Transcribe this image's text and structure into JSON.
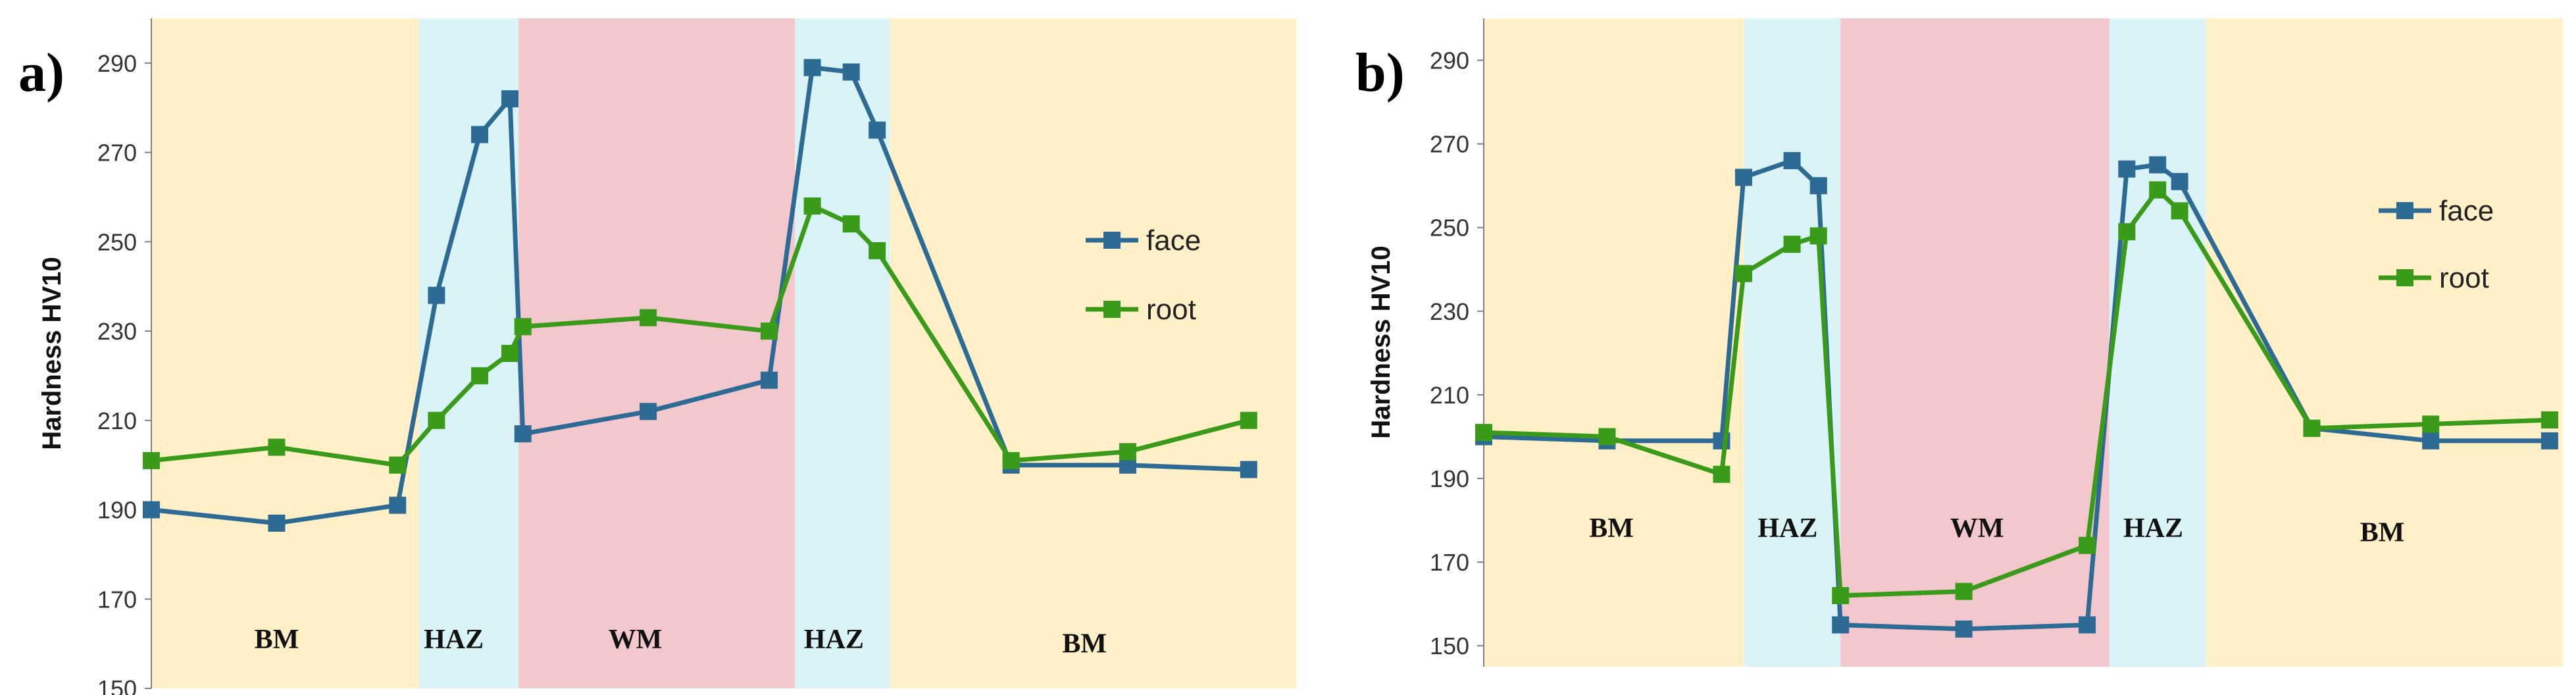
{
  "colors": {
    "bm": "#FFF0C8",
    "haz": "#DAF3F6",
    "wm": "#F2C8CC",
    "face": "#2D6A94",
    "root": "#3A9A1A",
    "axis": "#7F7F7F"
  },
  "chart_data": [
    {
      "type": "line",
      "panel_label": "a)",
      "ylabel": "Hardness HV10",
      "ylim": [
        150,
        300
      ],
      "yticks": [
        150,
        170,
        190,
        210,
        230,
        250,
        270,
        290
      ],
      "xlim": [
        0,
        26.5
      ],
      "zones": [
        {
          "label": "BM",
          "start": 0,
          "end": 6.2,
          "kind": "bm",
          "label_x": 2.9,
          "label_y": 159
        },
        {
          "label": "HAZ",
          "start": 6.2,
          "end": 8.5,
          "kind": "haz",
          "label_x": 7.0,
          "label_y": 159
        },
        {
          "label": "WM",
          "start": 8.5,
          "end": 14.9,
          "kind": "wm",
          "label_x": 11.2,
          "label_y": 159
        },
        {
          "label": "HAZ",
          "start": 14.9,
          "end": 17.1,
          "kind": "haz",
          "label_x": 15.8,
          "label_y": 159
        },
        {
          "label": "BM",
          "start": 17.1,
          "end": 26.5,
          "kind": "bm",
          "label_x": 21.6,
          "label_y": 158
        }
      ],
      "legend": {
        "position": "right",
        "entries": [
          "face",
          "root"
        ]
      },
      "series": [
        {
          "name": "face",
          "x": [
            0,
            2.9,
            5.7,
            6.6,
            7.6,
            8.3,
            8.6,
            11.5,
            14.3,
            15.3,
            16.2,
            16.8,
            19.9,
            22.6,
            25.4
          ],
          "y": [
            190,
            187,
            191,
            238,
            274,
            282,
            207,
            212,
            219,
            289,
            288,
            275,
            200,
            200,
            199
          ]
        },
        {
          "name": "root",
          "x": [
            0,
            2.9,
            5.7,
            6.6,
            7.6,
            8.3,
            8.6,
            11.5,
            14.3,
            15.3,
            16.2,
            16.8,
            19.9,
            22.6,
            25.4
          ],
          "y": [
            201,
            204,
            200,
            210,
            220,
            225,
            231,
            233,
            230,
            258,
            254,
            248,
            201,
            203,
            210
          ]
        }
      ]
    },
    {
      "type": "line",
      "panel_label": "b)",
      "ylabel": "Hardness HV10",
      "ylim": [
        145,
        300
      ],
      "yticks": [
        150,
        170,
        190,
        210,
        230,
        250,
        270,
        290
      ],
      "xlim": [
        0,
        24.5
      ],
      "zones": [
        {
          "label": "BM",
          "start": 0,
          "end": 5.9,
          "kind": "bm",
          "label_x": 2.9,
          "label_y": 176
        },
        {
          "label": "HAZ",
          "start": 5.9,
          "end": 8.1,
          "kind": "haz",
          "label_x": 6.9,
          "label_y": 176
        },
        {
          "label": "WM",
          "start": 8.1,
          "end": 14.2,
          "kind": "wm",
          "label_x": 11.2,
          "label_y": 176
        },
        {
          "label": "HAZ",
          "start": 14.2,
          "end": 16.4,
          "kind": "haz",
          "label_x": 15.2,
          "label_y": 176
        },
        {
          "label": "BM",
          "start": 16.4,
          "end": 24.5,
          "kind": "bm",
          "label_x": 20.4,
          "label_y": 175
        }
      ],
      "legend": {
        "position": "right",
        "entries": [
          "face",
          "root"
        ]
      },
      "series": [
        {
          "name": "face",
          "x": [
            0,
            2.8,
            5.4,
            5.9,
            7.0,
            7.6,
            8.1,
            10.9,
            13.7,
            14.6,
            15.3,
            15.8,
            18.8,
            21.5,
            24.2
          ],
          "y": [
            200,
            199,
            199,
            262,
            266,
            260,
            155,
            154,
            155,
            264,
            265,
            261,
            202,
            199,
            199
          ]
        },
        {
          "name": "root",
          "x": [
            0,
            2.8,
            5.4,
            5.9,
            7.0,
            7.6,
            8.1,
            10.9,
            13.7,
            14.6,
            15.3,
            15.8,
            18.8,
            21.5,
            24.2
          ],
          "y": [
            201,
            200,
            191,
            239,
            246,
            248,
            162,
            163,
            174,
            249,
            259,
            254,
            202,
            203,
            204
          ]
        }
      ]
    }
  ]
}
